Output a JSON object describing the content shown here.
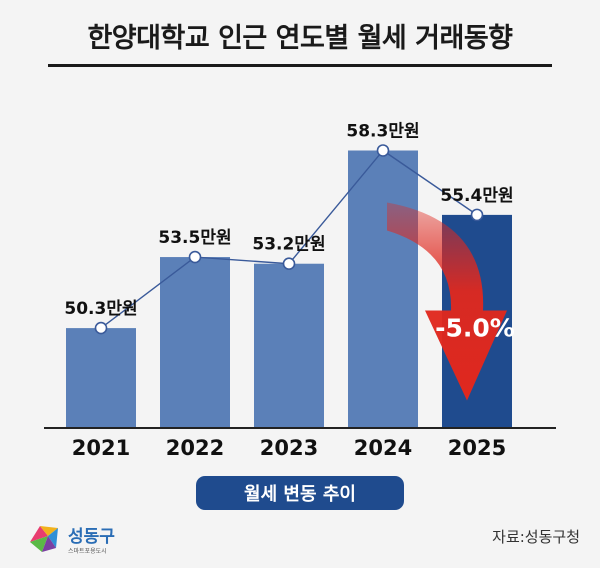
{
  "title": "한양대학교 인근 연도별 월세 거래동향",
  "legend_label": "월세 변동 추이",
  "change_label": "-5.0%",
  "source": "자료:성동구청",
  "logo": {
    "name": "성동구",
    "tagline": "스마트포용도시"
  },
  "colors": {
    "bar": "#5b80b8",
    "bar_highlight": "#1f4b8e",
    "line": "#3a5a9a",
    "arrow": "#e0281e"
  },
  "chart_data": {
    "type": "bar",
    "categories": [
      "2021",
      "2022",
      "2023",
      "2024",
      "2025"
    ],
    "values": [
      50.3,
      53.5,
      53.2,
      58.3,
      55.4
    ],
    "data_labels": [
      "50.3만원",
      "53.5만원",
      "53.2만원",
      "58.3만원",
      "55.4만원"
    ],
    "unit": "만원",
    "highlight_index": 4,
    "overlay_line": true,
    "grid": false,
    "annotation": "-5.0%"
  }
}
